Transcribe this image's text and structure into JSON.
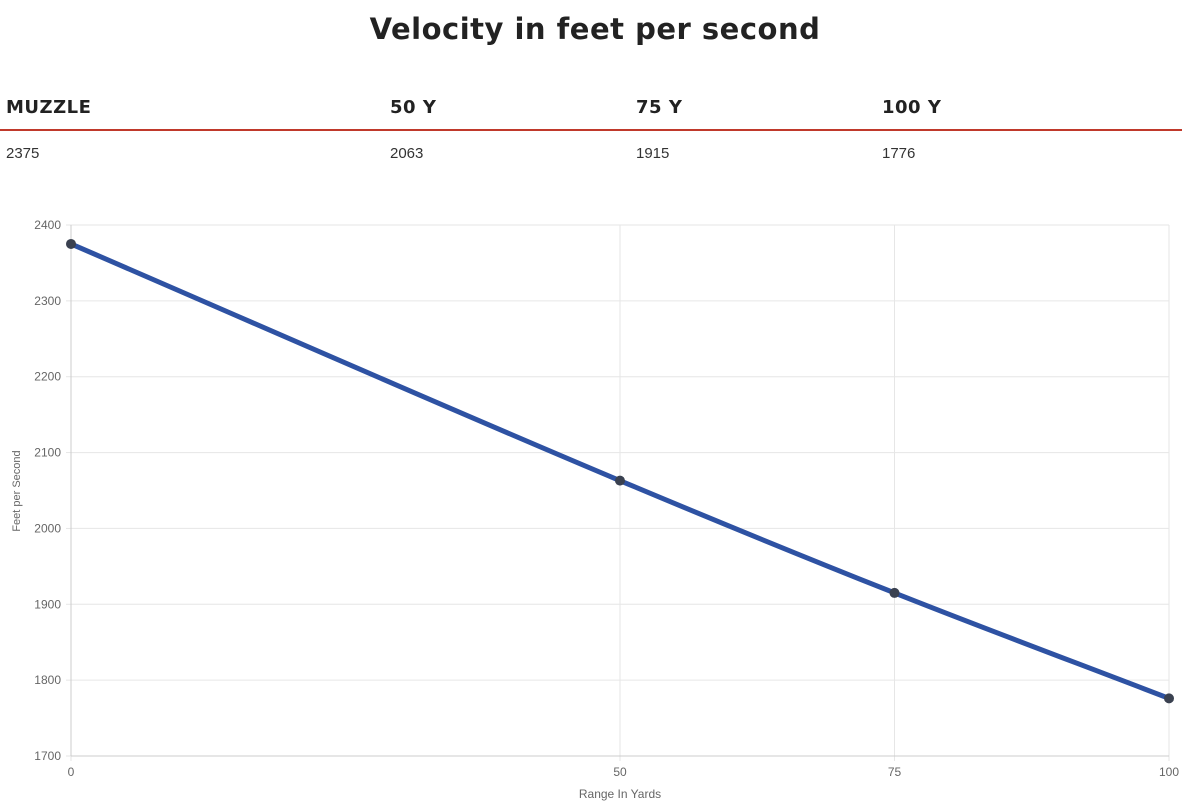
{
  "page": {
    "title": "Velocity in feet per second"
  },
  "velocity_table": {
    "headers": [
      "MUZZLE",
      "50 Y",
      "75 Y",
      "100 Y"
    ],
    "values": [
      "2375",
      "2063",
      "1915",
      "1776"
    ]
  },
  "chart_data": {
    "type": "line",
    "title": "",
    "xlabel": "Range In Yards",
    "ylabel": "Feet per Second",
    "x": [
      0,
      50,
      75,
      100
    ],
    "xticks": [
      0,
      50,
      75,
      100
    ],
    "yticks": [
      1700,
      1800,
      1900,
      2000,
      2100,
      2200,
      2300,
      2400
    ],
    "xlim": [
      0,
      100
    ],
    "ylim": [
      1700,
      2400
    ],
    "grid": true,
    "legend": "none",
    "series": [
      {
        "values": [
          2375,
          2063,
          1915,
          1776
        ],
        "color": "#2e52a3"
      }
    ],
    "colors": {
      "line": "#2e52a3",
      "point": "#3a4150",
      "grid": "#e6e6e6",
      "axis": "#cccccc",
      "header_rule": "#c0392b"
    }
  }
}
